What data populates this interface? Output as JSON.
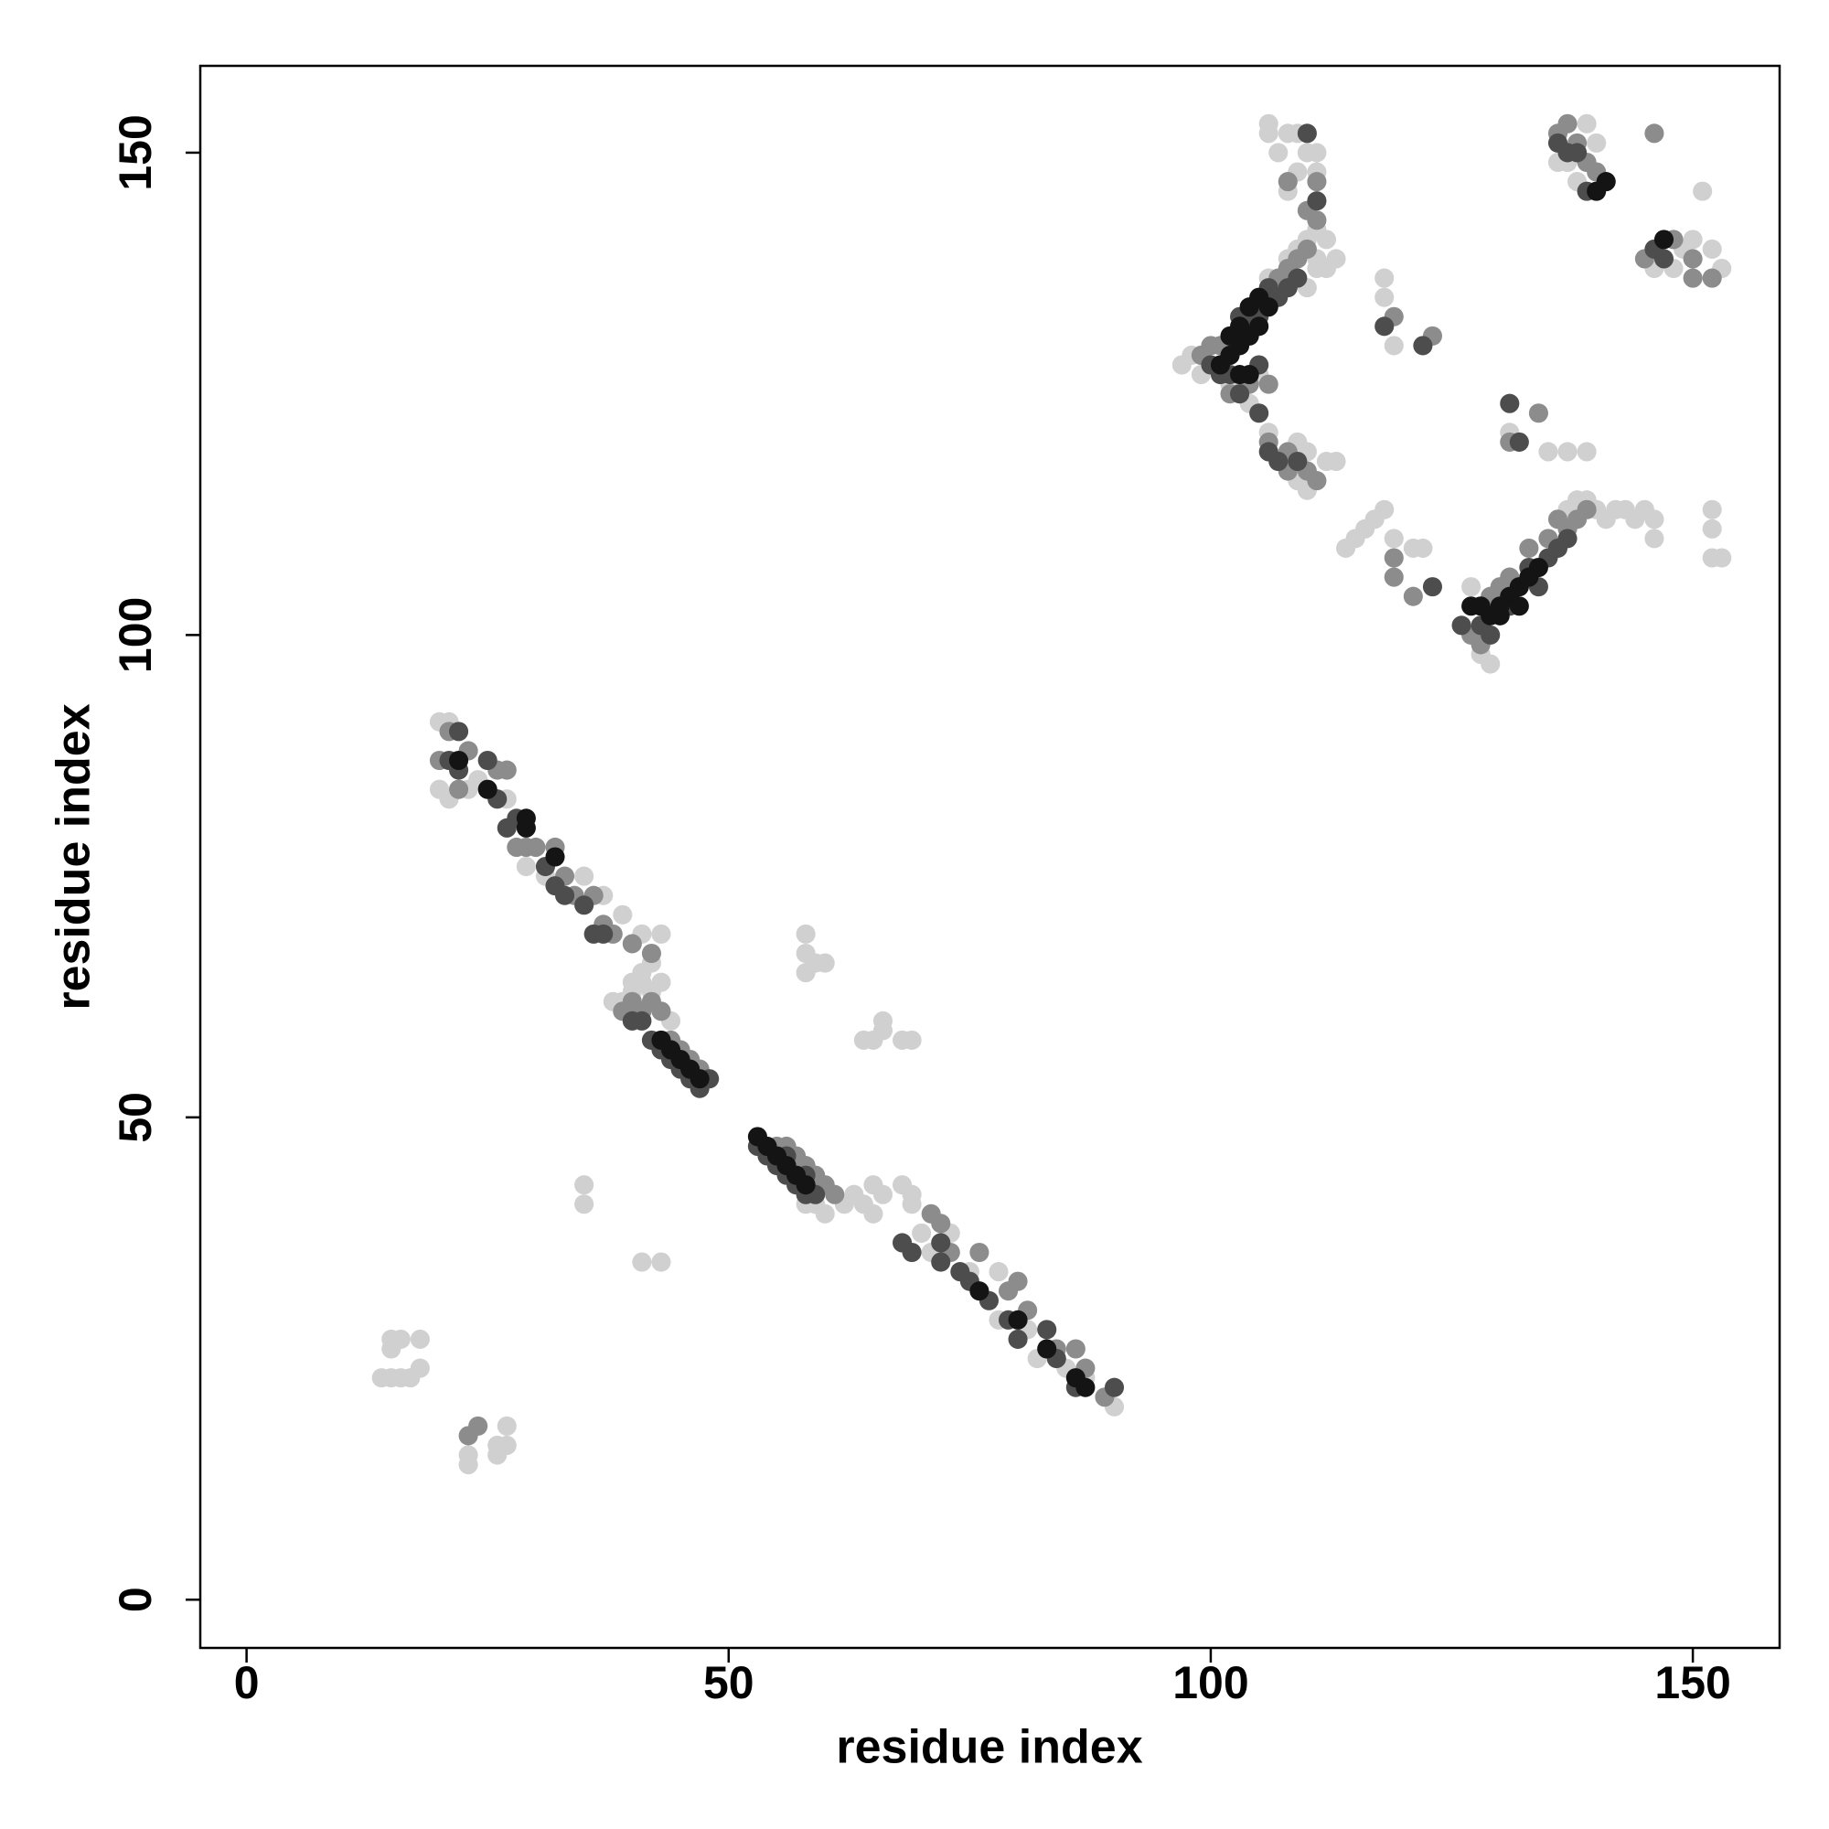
{
  "chart_data": {
    "type": "scatter",
    "x_label": "residue index",
    "y_label": "residue index",
    "xlim": [
      -4.8,
      159
    ],
    "ylim": [
      -5,
      159
    ],
    "xticks": [
      0,
      50,
      100,
      150
    ],
    "yticks": [
      0,
      50,
      100,
      150
    ],
    "grid": false,
    "series": [
      {
        "color": "#d0d0d0",
        "x": [
          20,
          21,
          20,
          21,
          23,
          24,
          27,
          29,
          31,
          35,
          37,
          39,
          41,
          43,
          40,
          41,
          42,
          43,
          39,
          40,
          41,
          42,
          38,
          44,
          58,
          59,
          60,
          62,
          63,
          64,
          65,
          65,
          66,
          68,
          69,
          69,
          73,
          75,
          78,
          78,
          81,
          82,
          85,
          87,
          90,
          70,
          71,
          58,
          58,
          59,
          60,
          58,
          64,
          65,
          66,
          66,
          68,
          69,
          35,
          35,
          41,
          43,
          14,
          15,
          16,
          17,
          18,
          15,
          16,
          18,
          15,
          23,
          23,
          26,
          27,
          27,
          26,
          97,
          98,
          99,
          102,
          105,
          106,
          108,
          109,
          110,
          111,
          112,
          113,
          111,
          110,
          109,
          110,
          111,
          109,
          108,
          106,
          106,
          107,
          108,
          111,
          111,
          112,
          104,
          106,
          108,
          109,
          110,
          112,
          113,
          109,
          110,
          118,
          118,
          119,
          115,
          116,
          117,
          118,
          119,
          114,
          121,
          122,
          127,
          128,
          129,
          139,
          140,
          141,
          142,
          143,
          144,
          145,
          146,
          146,
          152,
          152,
          152,
          153,
          137,
          138,
          135,
          137,
          139,
          131,
          136,
          137,
          139,
          140,
          138,
          151,
          146,
          149,
          150,
          152,
          153,
          148
        ],
        "y": [
          91,
          91,
          84,
          83,
          84,
          85,
          83,
          76,
          75,
          75,
          73,
          71,
          69,
          69,
          64,
          65,
          66,
          64,
          62,
          63,
          64,
          63,
          62,
          60,
          41,
          41,
          40,
          41,
          42,
          41,
          40,
          43,
          42,
          43,
          42,
          41,
          38,
          34,
          34,
          29,
          28,
          25,
          24,
          23,
          20,
          38,
          36,
          69,
          67,
          66,
          66,
          65,
          58,
          58,
          59,
          60,
          58,
          58,
          43,
          41,
          35,
          35,
          23,
          23,
          23,
          23,
          24,
          27,
          27,
          27,
          26,
          15,
          14,
          16,
          18,
          16,
          15,
          128,
          129,
          127,
          126,
          127,
          137,
          139,
          140,
          141,
          139,
          138,
          139,
          138,
          136,
          148,
          150,
          150,
          152,
          152,
          153,
          152,
          150,
          146,
          148,
          142,
          141,
          124,
          121,
          118,
          116,
          115,
          118,
          118,
          120,
          119,
          137,
          135,
          130,
          110,
          111,
          112,
          113,
          110,
          109,
          109,
          109,
          105,
          98,
          97,
          114,
          113,
          112,
          113,
          113,
          112,
          113,
          112,
          110,
          113,
          111,
          108,
          108,
          113,
          114,
          119,
          119,
          119,
          121,
          149,
          149,
          153,
          151,
          147,
          146,
          138,
          140,
          141,
          140,
          138,
          138
        ]
      },
      {
        "color": "#8c8c8c",
        "x": [
          20,
          21,
          23,
          22,
          27,
          26,
          28,
          30,
          32,
          29,
          33,
          34,
          36,
          37,
          38,
          40,
          42,
          39,
          40,
          41,
          42,
          43,
          44,
          45,
          46,
          47,
          55,
          56,
          57,
          58,
          59,
          60,
          61,
          71,
          72,
          73,
          76,
          79,
          80,
          81,
          84,
          86,
          87,
          89,
          23,
          24,
          99,
          100,
          101,
          102,
          104,
          106,
          107,
          108,
          109,
          110,
          110,
          111,
          111,
          108,
          106,
          108,
          110,
          111,
          108,
          119,
          123,
          127,
          128,
          129,
          130,
          131,
          133,
          135,
          136,
          137,
          138,
          139,
          119,
          119,
          121,
          136,
          137,
          138,
          139,
          140,
          146,
          145,
          148,
          150,
          150,
          152,
          131,
          134
        ],
        "y": [
          87,
          90,
          88,
          84,
          86,
          86,
          78,
          78,
          78,
          78,
          75,
          73,
          73,
          70,
          69,
          68,
          67,
          61,
          62,
          61,
          62,
          61,
          58,
          57,
          56,
          55,
          47,
          47,
          46,
          45,
          44,
          43,
          42,
          40,
          39,
          36,
          36,
          32,
          33,
          30,
          26,
          26,
          24,
          21,
          17,
          18,
          129,
          130,
          130,
          125,
          126,
          126,
          137,
          138,
          139,
          140,
          144,
          143,
          147,
          147,
          120,
          119,
          117,
          116,
          117,
          133,
          131,
          100,
          99,
          104,
          105,
          106,
          109,
          110,
          112,
          111,
          112,
          113,
          108,
          106,
          104,
          152,
          153,
          151,
          149,
          148,
          152,
          139,
          141,
          139,
          137,
          137,
          120,
          123
        ]
      },
      {
        "color": "#4d4d4d",
        "x": [
          22,
          21,
          22,
          25,
          26,
          28,
          27,
          31,
          33,
          35,
          32,
          36,
          37,
          40,
          41,
          42,
          43,
          44,
          45,
          46,
          47,
          48,
          53,
          54,
          55,
          56,
          57,
          58,
          59,
          56,
          58,
          72,
          72,
          74,
          75,
          77,
          79,
          80,
          83,
          84,
          86,
          90,
          68,
          69,
          100,
          101,
          102,
          103,
          104,
          105,
          106,
          107,
          108,
          103,
          105,
          106,
          107,
          105,
          109,
          109,
          111,
          110,
          118,
          122,
          123,
          126,
          128,
          129,
          131,
          133,
          135,
          136,
          137,
          134,
          131,
          132,
          136,
          137,
          138,
          139,
          146,
          147
        ],
        "y": [
          90,
          87,
          86,
          87,
          83,
          81,
          80,
          76,
          73,
          72,
          74,
          69,
          69,
          60,
          60,
          58,
          57,
          56,
          55,
          54,
          53,
          54,
          47,
          46,
          45,
          44,
          43,
          42,
          42,
          46,
          44,
          37,
          35,
          34,
          33,
          31,
          29,
          27,
          28,
          25,
          22,
          22,
          37,
          36,
          128,
          127,
          127,
          133,
          132,
          133,
          136,
          135,
          136,
          125,
          123,
          119,
          118,
          128,
          118,
          137,
          145,
          152,
          132,
          130,
          105,
          101,
          101,
          100,
          103,
          107,
          108,
          109,
          110,
          105,
          124,
          120,
          151,
          150,
          150,
          146,
          140,
          139
        ]
      },
      {
        "color": "#141414",
        "x": [
          22,
          25,
          29,
          32,
          29,
          43,
          44,
          45,
          46,
          47,
          53,
          54,
          55,
          56,
          57,
          58,
          76,
          80,
          83,
          86,
          87,
          102,
          103,
          104,
          103,
          102,
          104,
          105,
          106,
          101,
          103,
          105,
          104,
          127,
          128,
          129,
          130,
          131,
          132,
          133,
          134,
          130,
          132,
          141,
          140,
          147
        ],
        "y": [
          87,
          84,
          81,
          77,
          80,
          58,
          57,
          56,
          55,
          54,
          48,
          47,
          46,
          45,
          44,
          43,
          32,
          29,
          26,
          23,
          22,
          131,
          132,
          134,
          130,
          129,
          131,
          132,
          134,
          128,
          127,
          135,
          127,
          103,
          103,
          102,
          103,
          104,
          105,
          106,
          107,
          102,
          103,
          147,
          146,
          141
        ]
      }
    ]
  }
}
